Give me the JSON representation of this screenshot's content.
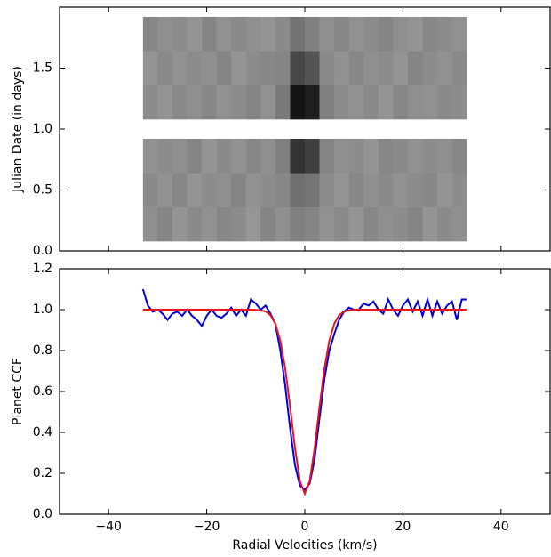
{
  "chart_data": [
    {
      "type": "heatmap",
      "ylabel": "Julian Date (in days)",
      "xlim": [
        -50,
        50
      ],
      "ylim": [
        0,
        2.0
      ],
      "xticks": [
        -40,
        -20,
        0,
        20,
        40
      ],
      "yticks": [
        {
          "value": 0,
          "label": "0.0"
        },
        {
          "value": 0.5,
          "label": "0.5"
        },
        {
          "value": 1.0,
          "label": "1.0"
        },
        {
          "value": 1.5,
          "label": "1.5"
        }
      ],
      "x_edges": [
        -33,
        -30,
        -27,
        -24,
        -21,
        -18,
        -15,
        -12,
        -9,
        -6,
        -3,
        0,
        3,
        6,
        9,
        12,
        15,
        18,
        21,
        24,
        27,
        30,
        33
      ],
      "blocks": [
        {
          "y": [
            0.08,
            0.92
          ],
          "rows": [
            [
              0.56,
              0.52,
              0.58,
              0.54,
              0.57,
              0.53,
              0.55,
              0.59,
              0.52,
              0.56,
              0.5,
              0.52,
              0.57,
              0.54,
              0.58,
              0.53,
              0.56,
              0.55,
              0.52,
              0.58,
              0.54,
              0.56
            ],
            [
              0.54,
              0.57,
              0.53,
              0.58,
              0.55,
              0.56,
              0.52,
              0.57,
              0.55,
              0.53,
              0.44,
              0.46,
              0.55,
              0.58,
              0.53,
              0.56,
              0.54,
              0.57,
              0.55,
              0.53,
              0.58,
              0.55
            ],
            [
              0.57,
              0.55,
              0.56,
              0.52,
              0.58,
              0.54,
              0.57,
              0.53,
              0.56,
              0.5,
              0.2,
              0.25,
              0.52,
              0.56,
              0.55,
              0.58,
              0.53,
              0.54,
              0.57,
              0.55,
              0.56,
              0.53
            ]
          ]
        },
        {
          "y": [
            1.08,
            1.92
          ],
          "rows": [
            [
              0.55,
              0.58,
              0.54,
              0.56,
              0.53,
              0.57,
              0.55,
              0.52,
              0.57,
              0.48,
              0.08,
              0.12,
              0.5,
              0.55,
              0.57,
              0.54,
              0.58,
              0.53,
              0.56,
              0.57,
              0.54,
              0.55
            ],
            [
              0.58,
              0.54,
              0.57,
              0.55,
              0.56,
              0.52,
              0.58,
              0.55,
              0.53,
              0.52,
              0.28,
              0.33,
              0.54,
              0.57,
              0.53,
              0.56,
              0.55,
              0.58,
              0.52,
              0.55,
              0.57,
              0.54
            ],
            [
              0.53,
              0.56,
              0.55,
              0.58,
              0.52,
              0.57,
              0.54,
              0.56,
              0.58,
              0.54,
              0.45,
              0.5,
              0.56,
              0.53,
              0.57,
              0.55,
              0.52,
              0.56,
              0.58,
              0.53,
              0.55,
              0.57
            ]
          ]
        }
      ]
    },
    {
      "type": "line",
      "xlabel": "Radial Velocities (km/s)",
      "ylabel": "Planet CCF",
      "xlim": [
        -50,
        50
      ],
      "ylim": [
        0,
        1.2
      ],
      "xticks": [
        {
          "value": -40,
          "label": "−40"
        },
        {
          "value": -20,
          "label": "−20"
        },
        0,
        20,
        40
      ],
      "yticks": [
        {
          "value": 0,
          "label": "0.0"
        },
        {
          "value": 0.2,
          "label": "0.2"
        },
        {
          "value": 0.4,
          "label": "0.4"
        },
        {
          "value": 0.6,
          "label": "0.6"
        },
        {
          "value": 0.8,
          "label": "0.8"
        },
        {
          "value": 1.0,
          "label": "1.0"
        },
        {
          "value": 1.2,
          "label": "1.2"
        }
      ],
      "x": [
        -33,
        -32,
        -31,
        -30,
        -29,
        -28,
        -27,
        -26,
        -25,
        -24,
        -23,
        -22,
        -21,
        -20,
        -19,
        -18,
        -17,
        -16,
        -15,
        -14,
        -13,
        -12,
        -11,
        -10,
        -9,
        -8,
        -7,
        -6,
        -5,
        -4,
        -3,
        -2,
        -1,
        0,
        1,
        2,
        3,
        4,
        5,
        6,
        7,
        8,
        9,
        10,
        11,
        12,
        13,
        14,
        15,
        16,
        17,
        18,
        19,
        20,
        21,
        22,
        23,
        24,
        25,
        26,
        27,
        28,
        29,
        30,
        31,
        32,
        33
      ],
      "series": [
        {
          "color": "#0000dd",
          "values": [
            1.1,
            1.02,
            0.99,
            1.0,
            0.98,
            0.95,
            0.98,
            0.99,
            0.97,
            1.0,
            0.97,
            0.95,
            0.92,
            0.97,
            1.0,
            0.97,
            0.96,
            0.98,
            1.01,
            0.97,
            1.0,
            0.97,
            1.05,
            1.03,
            1.0,
            1.02,
            0.98,
            0.93,
            0.8,
            0.63,
            0.42,
            0.24,
            0.14,
            0.12,
            0.15,
            0.27,
            0.47,
            0.66,
            0.8,
            0.88,
            0.95,
            0.99,
            1.01,
            1.0,
            1.0,
            1.03,
            1.02,
            1.04,
            1.0,
            0.98,
            1.05,
            1.0,
            0.97,
            1.02,
            1.05,
            0.99,
            1.04,
            0.97,
            1.05,
            0.97,
            1.04,
            0.98,
            1.02,
            1.04,
            0.95,
            1.05,
            1.05
          ]
        },
        {
          "color": "#e8141e",
          "values": [
            1,
            1,
            1,
            1,
            1,
            1,
            1,
            1,
            1,
            1,
            1,
            1,
            1,
            1,
            1,
            1,
            1,
            1,
            1,
            1,
            1,
            1,
            1,
            0.999,
            0.997,
            0.991,
            0.973,
            0.931,
            0.849,
            0.713,
            0.527,
            0.324,
            0.162,
            0.1,
            0.162,
            0.324,
            0.527,
            0.713,
            0.849,
            0.931,
            0.973,
            0.991,
            0.997,
            0.999,
            1,
            1,
            1,
            1,
            1,
            1,
            1,
            1,
            1,
            1,
            1,
            1,
            1,
            1,
            1,
            1,
            1,
            1,
            1,
            1,
            1,
            1,
            1
          ]
        }
      ]
    }
  ]
}
